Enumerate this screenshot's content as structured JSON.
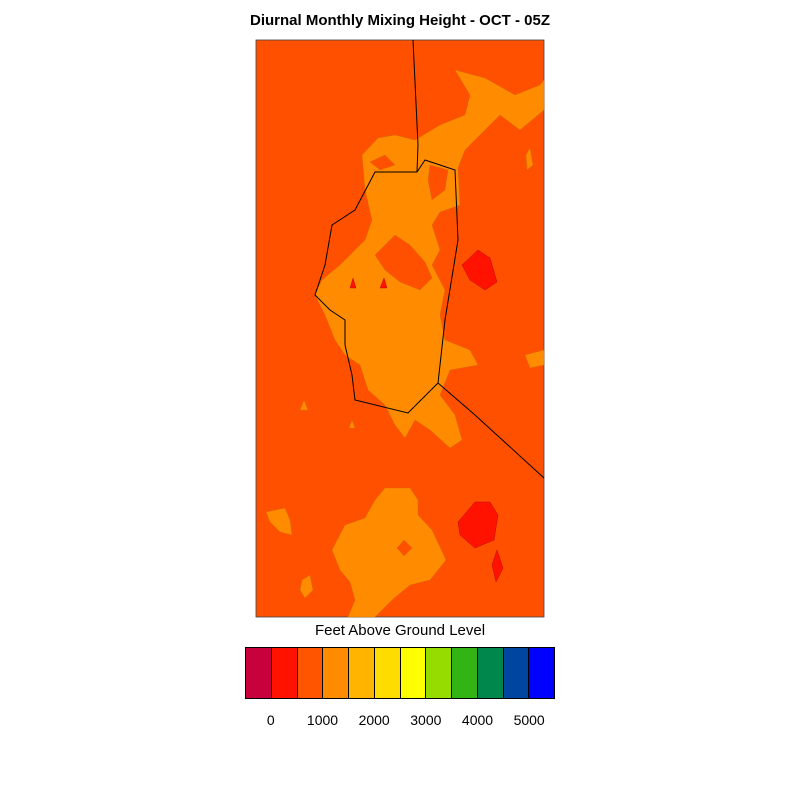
{
  "title": "Diurnal Monthly Mixing Height - OCT - 05Z",
  "legend": {
    "label": "Feet Above Ground Level",
    "colors": [
      "#c8003c",
      "#ff1200",
      "#ff5500",
      "#ff8c00",
      "#ffb400",
      "#ffdc00",
      "#ffff00",
      "#96dc00",
      "#32b414",
      "#00874b",
      "#0046a0",
      "#0000ff"
    ],
    "ticks": [
      "0",
      "1000",
      "2000",
      "3000",
      "4000",
      "5000"
    ]
  },
  "map_colors": {
    "background": "#ff5000",
    "mid_band": "#ff8c00",
    "low_band": "#ff1200",
    "boundary": "#000000"
  }
}
